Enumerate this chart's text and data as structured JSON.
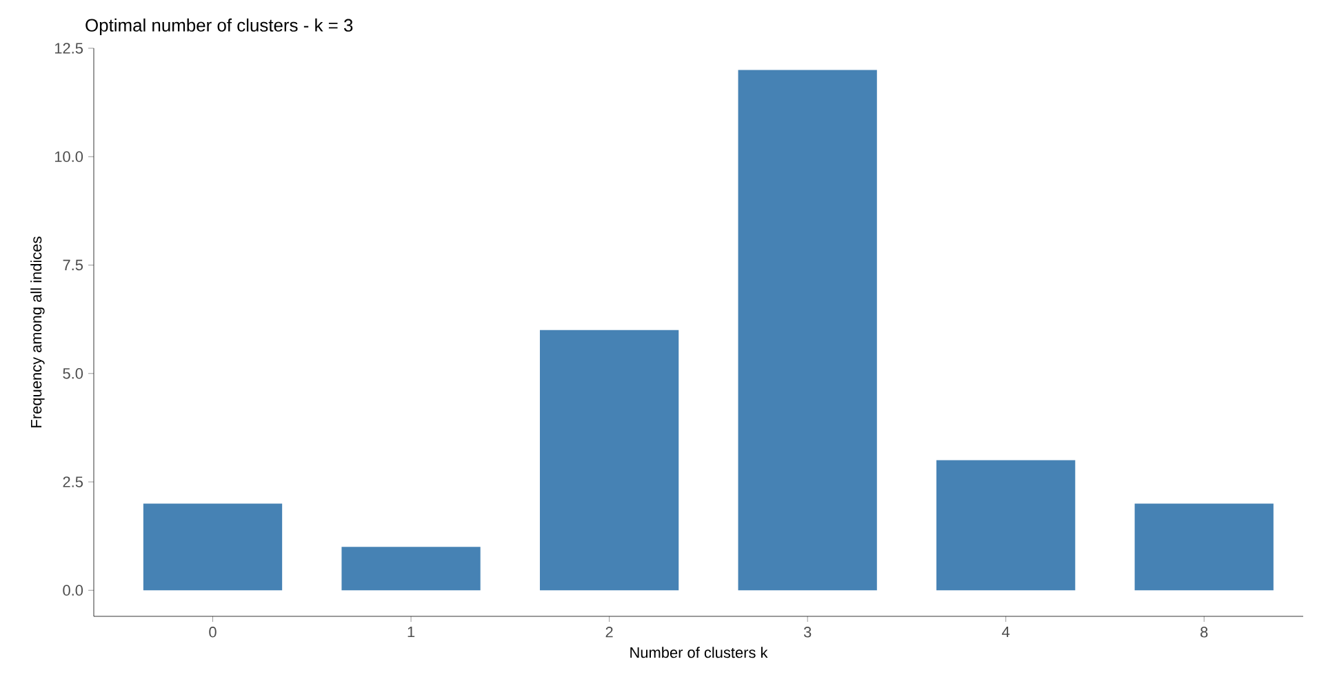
{
  "chart_data": {
    "type": "bar",
    "title": "Optimal number of clusters - k = 3",
    "xlabel": "Number of clusters k",
    "ylabel": "Frequency among all indices",
    "categories": [
      "0",
      "1",
      "2",
      "3",
      "4",
      "8"
    ],
    "values": [
      2,
      1,
      6,
      12,
      3,
      2
    ],
    "color": "#4682b4",
    "ylim": [
      -0.6,
      12.5
    ],
    "yticks": [
      {
        "value": 0,
        "label": "0.0"
      },
      {
        "value": 2.5,
        "label": "2.5"
      },
      {
        "value": 5,
        "label": "5.0"
      },
      {
        "value": 7.5,
        "label": "7.5"
      },
      {
        "value": 10,
        "label": "10.0"
      },
      {
        "value": 12.5,
        "label": "12.5"
      }
    ],
    "grid": false
  }
}
